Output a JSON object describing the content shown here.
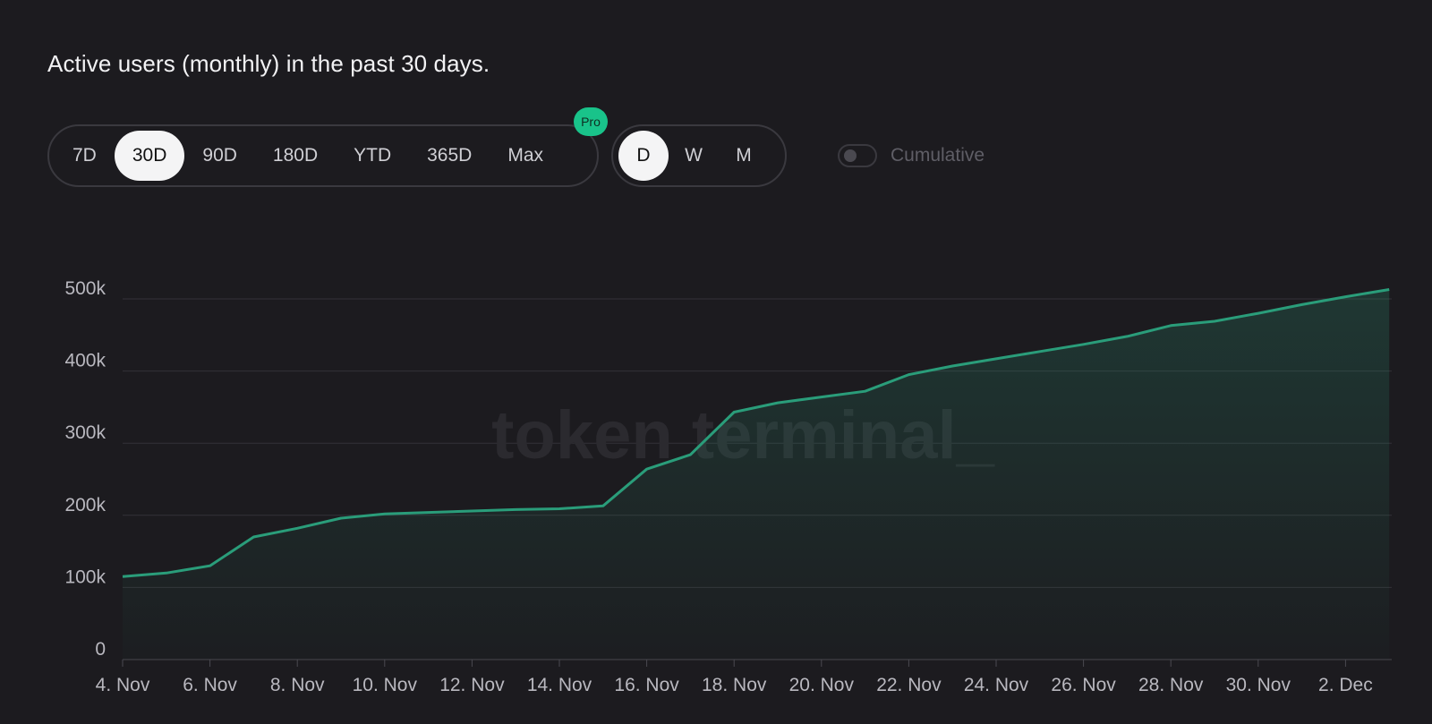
{
  "header": {
    "title": "Active users (monthly) in the past 30 days."
  },
  "range_tabs": {
    "items": [
      "7D",
      "30D",
      "90D",
      "180D",
      "YTD",
      "365D",
      "Max"
    ],
    "active": "30D",
    "pro_badge": "Pro"
  },
  "interval_tabs": {
    "items": [
      "D",
      "W",
      "M"
    ],
    "active": "D"
  },
  "cumulative_toggle": {
    "label": "Cumulative",
    "on": false
  },
  "watermark": "token terminal_",
  "colors": {
    "background": "#1c1b1f",
    "line": "#2a9d7a",
    "pro_badge": "#19c38a",
    "grid": "#333238"
  },
  "chart_data": {
    "type": "area",
    "title": "Active users (monthly) in the past 30 days.",
    "xlabel": "",
    "ylabel": "",
    "ylim": [
      0,
      500000
    ],
    "y_ticks": [
      0,
      100000,
      200000,
      300000,
      400000,
      500000
    ],
    "y_tick_labels": [
      "0",
      "100k",
      "200k",
      "300k",
      "400k",
      "500k"
    ],
    "x_tick_labels": [
      "4. Nov",
      "6. Nov",
      "8. Nov",
      "10. Nov",
      "12. Nov",
      "14. Nov",
      "16. Nov",
      "18. Nov",
      "20. Nov",
      "22. Nov",
      "24. Nov",
      "26. Nov",
      "28. Nov",
      "30. Nov",
      "2. Dec"
    ],
    "grid": true,
    "series": [
      {
        "x": [
          "4. Nov",
          "5. Nov",
          "6. Nov",
          "7. Nov",
          "8. Nov",
          "9. Nov",
          "10. Nov",
          "11. Nov",
          "12. Nov",
          "13. Nov",
          "14. Nov",
          "15. Nov",
          "16. Nov",
          "17. Nov",
          "18. Nov",
          "19. Nov",
          "20. Nov",
          "21. Nov",
          "22. Nov",
          "23. Nov",
          "24. Nov",
          "25. Nov",
          "26. Nov",
          "27. Nov",
          "28. Nov",
          "29. Nov",
          "30. Nov",
          "1. Dec",
          "2. Dec",
          "3. Dec"
        ],
        "values": [
          115000,
          120000,
          130000,
          170000,
          182000,
          196000,
          202000,
          204000,
          206000,
          208000,
          209000,
          213000,
          264000,
          284000,
          343000,
          356000,
          364000,
          372000,
          395000,
          407000,
          417000,
          427000,
          437000,
          448000,
          463000,
          469000,
          480000,
          492000,
          503000,
          513000
        ]
      }
    ]
  }
}
